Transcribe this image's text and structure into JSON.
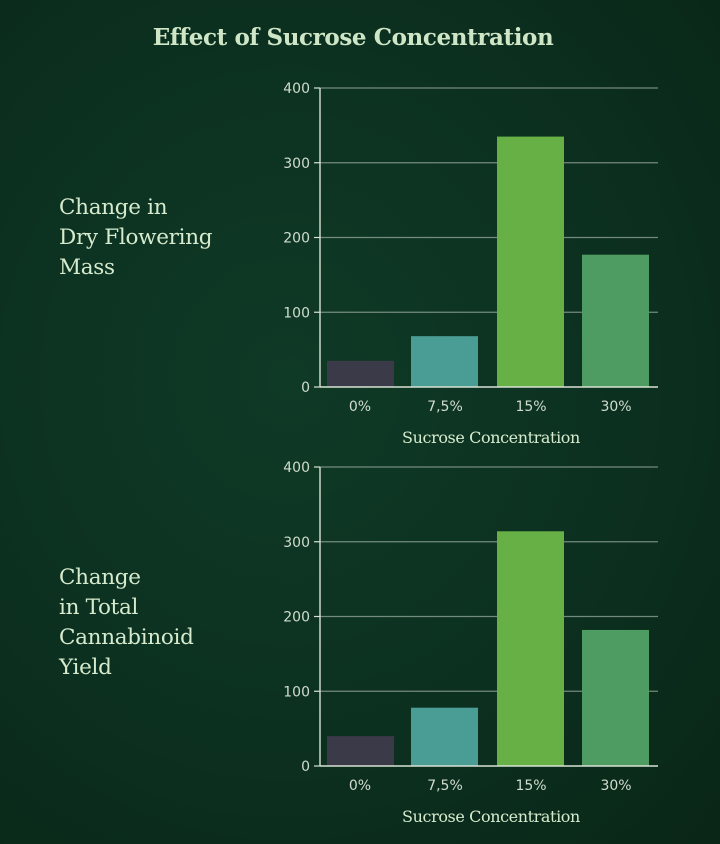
{
  "title": "Effect of Sucrose Concentration",
  "colors": {
    "background": "#0c3020",
    "text": "#d6ebcd",
    "axis": "#d8e2d4",
    "bars": [
      "#3a3a48",
      "#4a9d94",
      "#66b045",
      "#4f9c63"
    ]
  },
  "chart_data": [
    {
      "type": "bar",
      "title_lines": [
        "Change in",
        "Dry Flowering",
        "Mass"
      ],
      "categories": [
        "0%",
        "7,5%",
        "15%",
        "30%"
      ],
      "values": [
        35,
        68,
        335,
        177
      ],
      "xlabel": "Sucrose Concentration",
      "ylabel": "",
      "ylim": [
        0,
        400
      ],
      "yticks": [
        0,
        100,
        200,
        300,
        400
      ],
      "grid": true,
      "legend": "none"
    },
    {
      "type": "bar",
      "title_lines": [
        "Change",
        "in Total",
        "Cannabinoid",
        "Yield"
      ],
      "categories": [
        "0%",
        "7,5%",
        "15%",
        "30%"
      ],
      "values": [
        40,
        78,
        314,
        182
      ],
      "xlabel": "Sucrose Concentration",
      "ylabel": "",
      "ylim": [
        0,
        400
      ],
      "yticks": [
        0,
        100,
        200,
        300,
        400
      ],
      "grid": true,
      "legend": "none"
    }
  ]
}
